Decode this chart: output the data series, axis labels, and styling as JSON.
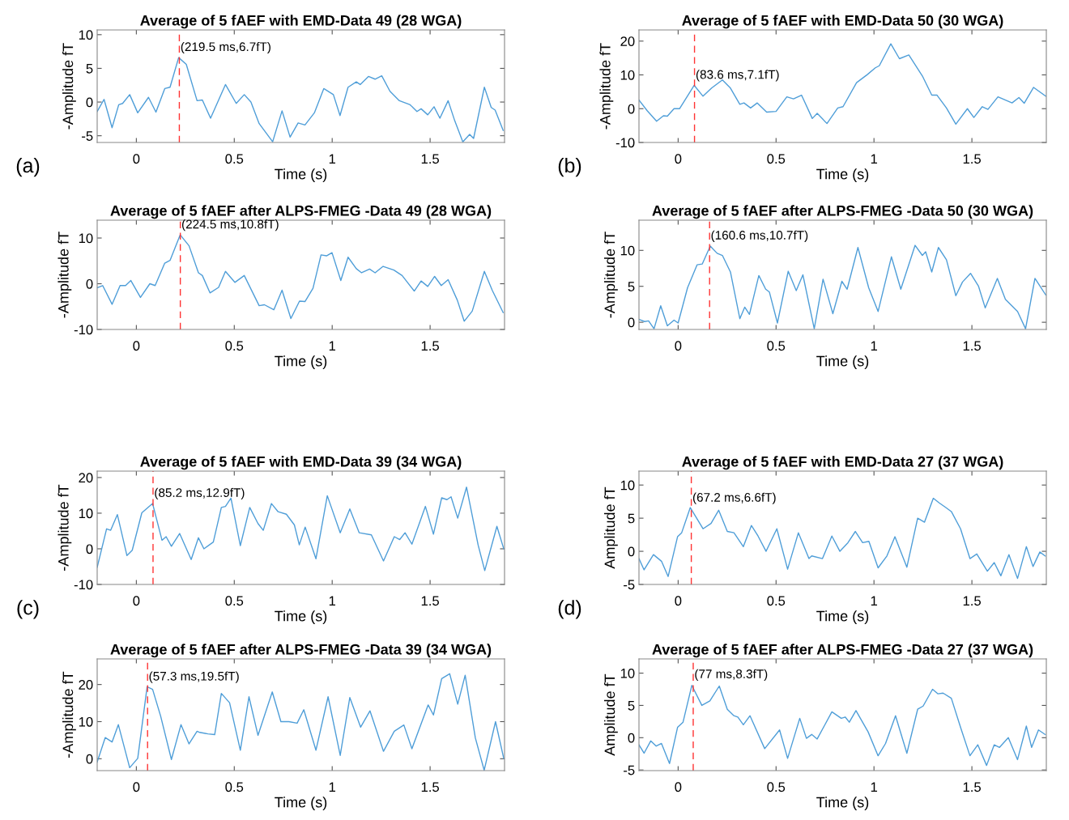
{
  "chart_data": [
    {
      "type": "line",
      "title": "Average of 5 fAEF with EMD-Data 49 (28 WGA)",
      "xlabel": "Time (s)",
      "ylabel": "-Amplitude fT",
      "xlim": [
        -0.2,
        1.88
      ],
      "xticks": [
        0,
        0.5,
        1,
        1.5
      ],
      "ylim": [
        -6,
        10.7
      ],
      "yticks": [
        -5,
        0,
        5,
        10
      ],
      "series": [
        {
          "color": "#4f9ed8",
          "x": [
            -0.2,
            -0.165,
            -0.124,
            -0.09,
            -0.07,
            -0.034,
            0.007,
            0.062,
            0.1,
            0.145,
            0.172,
            0.216,
            0.255,
            0.31,
            0.337,
            0.379,
            0.455,
            0.51,
            0.551,
            0.585,
            0.627,
            0.696,
            0.744,
            0.785,
            0.826,
            0.861,
            0.909,
            0.957,
            1.006,
            1.04,
            1.081,
            1.123,
            1.143,
            1.185,
            1.219,
            1.253,
            1.295,
            1.343,
            1.398,
            1.433,
            1.454,
            1.488,
            1.52,
            1.55,
            1.592,
            1.626,
            1.667,
            1.702,
            1.722,
            1.777,
            1.812,
            1.832,
            1.873
          ],
          "values": [
            -1.4,
            0.4,
            -3.8,
            -0.4,
            -0.2,
            1.1,
            -1.6,
            0.7,
            -1.5,
            2.0,
            2.2,
            6.6,
            5.6,
            0.2,
            0.3,
            -2.4,
            2.6,
            -0.2,
            1.1,
            0,
            -3.2,
            -5.9,
            -1.3,
            -5.2,
            -3.1,
            -3.4,
            -1.6,
            2.0,
            1.1,
            -2.0,
            2.2,
            3.0,
            2.6,
            3.8,
            3.4,
            3.9,
            1.6,
            0.2,
            -0.4,
            -1.4,
            -1.0,
            -1.9,
            -0.7,
            -2.4,
            0.2,
            -2.8,
            -5.9,
            -4.8,
            -5.4,
            2.2,
            -0.8,
            -1.2,
            -4.2
          ]
        }
      ],
      "ref_lines": [
        {
          "axis": "x",
          "value": 0.2195,
          "color": "#ff3333",
          "line_style": "dashed"
        }
      ],
      "annotations": [
        {
          "text": "(219.5 ms,6.7fT)",
          "x": 0.2195,
          "y": 6.7
        },
        "(a)"
      ]
    },
    {
      "type": "line",
      "title": "Average of 5 fAEF with EMD-Data 50 (30 WGA)",
      "xlabel": "Time (s)",
      "ylabel": "-Amplitude fT",
      "xlim": [
        -0.2,
        1.88
      ],
      "xticks": [
        0,
        0.5,
        1,
        1.5
      ],
      "ylim": [
        -10,
        23.3
      ],
      "yticks": [
        -10,
        0,
        10,
        20
      ],
      "series": [
        {
          "color": "#4f9ed8",
          "x": [
            -0.199,
            -0.158,
            -0.11,
            -0.075,
            -0.055,
            -0.021,
            0.007,
            0.082,
            0.127,
            0.171,
            0.226,
            0.267,
            0.315,
            0.336,
            0.37,
            0.404,
            0.452,
            0.5,
            0.555,
            0.589,
            0.63,
            0.685,
            0.71,
            0.76,
            0.815,
            0.842,
            0.911,
            0.966,
            1.007,
            1.027,
            1.086,
            1.13,
            1.178,
            1.247,
            1.295,
            1.322,
            1.37,
            1.418,
            1.477,
            1.51,
            1.553,
            1.582,
            1.633,
            1.705,
            1.74,
            1.767,
            1.815,
            1.877
          ],
          "values": [
            2.5,
            -0.6,
            -3.7,
            -2.1,
            -2.2,
            0,
            0,
            6.9,
            3.7,
            6.1,
            8.5,
            6.1,
            1.3,
            1.7,
            0.2,
            1.7,
            -1.0,
            -0.8,
            3.5,
            2.9,
            4.0,
            -2.9,
            -1.4,
            -4.4,
            0.2,
            0.6,
            7.7,
            10.1,
            12.1,
            12.7,
            19.2,
            14.8,
            15.9,
            9.7,
            4.0,
            4.0,
            0.2,
            -4.6,
            0,
            -2.6,
            0.6,
            -0.2,
            3.5,
            1.7,
            3.3,
            1.6,
            6.3,
            3.7
          ]
        }
      ],
      "ref_lines": [
        {
          "axis": "x",
          "value": 0.0836,
          "color": "#ff3333",
          "line_style": "dashed"
        }
      ],
      "annotations": [
        {
          "text": "(83.6 ms,7.1fT)",
          "x": 0.0836,
          "y": 7.1
        },
        "(b)"
      ]
    },
    {
      "type": "line",
      "title": "Average of 5 fAEF after ALPS-FMEG -Data 49 (28 WGA)",
      "xlabel": "Time (s)",
      "ylabel": "-Amplitude fT",
      "xlim": [
        -0.2,
        1.88
      ],
      "xticks": [
        0,
        0.5,
        1,
        1.5
      ],
      "ylim": [
        -10,
        13.9
      ],
      "yticks": [
        -10,
        0,
        10
      ],
      "series": [
        {
          "color": "#4f9ed8",
          "x": [
            -0.2,
            -0.172,
            -0.124,
            -0.083,
            -0.055,
            -0.028,
            0.021,
            0.069,
            0.096,
            0.145,
            0.172,
            0.224,
            0.269,
            0.317,
            0.337,
            0.376,
            0.42,
            0.455,
            0.503,
            0.551,
            0.627,
            0.654,
            0.702,
            0.744,
            0.789,
            0.833,
            0.861,
            0.902,
            0.943,
            0.971,
            0.999,
            1.044,
            1.081,
            1.123,
            1.15,
            1.191,
            1.219,
            1.26,
            1.315,
            1.357,
            1.419,
            1.454,
            1.488,
            1.523,
            1.557,
            1.592,
            1.639,
            1.674,
            1.715,
            1.777,
            1.818,
            1.873
          ],
          "values": [
            -0.9,
            -0.4,
            -4.5,
            -0.4,
            -0.4,
            0.7,
            -3.0,
            0,
            -0.4,
            4.5,
            5.1,
            10.7,
            8.3,
            2.4,
            1.8,
            -2.0,
            -0.8,
            2.7,
            0.3,
            1.8,
            -4.8,
            -4.6,
            -5.7,
            -1.4,
            -7.6,
            -3.8,
            -3.9,
            -1.0,
            6.3,
            6.1,
            6.8,
            0.7,
            5.8,
            3.3,
            2.4,
            3.2,
            2.4,
            3.8,
            3.0,
            1.8,
            -1.6,
            0.6,
            -0.6,
            1.6,
            -0.4,
            0.9,
            -3.6,
            -8.2,
            -6.0,
            2.7,
            -1.5,
            -6.3
          ]
        }
      ],
      "ref_lines": [
        {
          "axis": "x",
          "value": 0.2245,
          "color": "#ff3333",
          "line_style": "dashed"
        }
      ],
      "annotations": [
        {
          "text": "(224.5 ms,10.8fT)",
          "x": 0.2245,
          "y": 10.8
        }
      ]
    },
    {
      "type": "line",
      "title": "Average of 5 fAEF after ALPS-FMEG -Data 50 (30 WGA)",
      "xlabel": "Time (s)",
      "ylabel": "-Amplitude fT",
      "xlim": [
        -0.2,
        1.88
      ],
      "xticks": [
        0,
        0.5,
        1,
        1.5
      ],
      "ylim": [
        -1,
        14.2
      ],
      "yticks": [
        0,
        5,
        10
      ],
      "series": [
        {
          "color": "#4f9ed8",
          "x": [
            -0.199,
            -0.171,
            -0.151,
            -0.123,
            -0.089,
            -0.055,
            -0.021,
            0,
            0.048,
            0.097,
            0.123,
            0.164,
            0.199,
            0.226,
            0.267,
            0.315,
            0.34,
            0.364,
            0.412,
            0.447,
            0.466,
            0.507,
            0.562,
            0.603,
            0.637,
            0.695,
            0.74,
            0.79,
            0.836,
            0.863,
            0.918,
            0.973,
            1.021,
            1.089,
            1.137,
            1.21,
            1.247,
            1.264,
            1.295,
            1.329,
            1.37,
            1.418,
            1.452,
            1.493,
            1.534,
            1.568,
            1.63,
            1.671,
            1.733,
            1.774,
            1.822,
            1.877
          ],
          "values": [
            0.4,
            0.1,
            0.2,
            -0.9,
            2.3,
            -0.5,
            0.3,
            -0.1,
            4.8,
            8.0,
            8.1,
            10.6,
            9.6,
            9.3,
            7.0,
            0.5,
            2.1,
            1.1,
            6.5,
            4.6,
            4.2,
            -0.1,
            7.1,
            4.4,
            6.6,
            -0.9,
            6.0,
            1.2,
            5.7,
            4.6,
            10.4,
            4.8,
            1.5,
            9.1,
            4.6,
            10.7,
            9.3,
            9.8,
            7.0,
            10.4,
            8.7,
            3.7,
            5.6,
            6.8,
            5.0,
            2.0,
            6.1,
            3.2,
            1.5,
            -0.9,
            6.1,
            3.8
          ]
        }
      ],
      "ref_lines": [
        {
          "axis": "x",
          "value": 0.1606,
          "color": "#ff3333",
          "line_style": "dashed"
        }
      ],
      "annotations": [
        {
          "text": "(160.6 ms,10.7fT)",
          "x": 0.1606,
          "y": 10.7
        }
      ]
    },
    {
      "type": "line",
      "title": "Average of 5 fAEF with EMD-Data 39 (34 WGA)",
      "xlabel": "Time (s)",
      "ylabel": "-Amplitude fT",
      "xlim": [
        -0.2,
        1.88
      ],
      "xticks": [
        0,
        0.5,
        1,
        1.5
      ],
      "ylim": [
        -10,
        21.8
      ],
      "yticks": [
        -10,
        0,
        10,
        20
      ],
      "series": [
        {
          "color": "#4f9ed8",
          "x": [
            -0.2,
            -0.152,
            -0.131,
            -0.097,
            -0.048,
            -0.021,
            0.028,
            0.083,
            0.131,
            0.152,
            0.179,
            0.221,
            0.28,
            0.317,
            0.345,
            0.393,
            0.434,
            0.455,
            0.483,
            0.531,
            0.579,
            0.621,
            0.648,
            0.69,
            0.724,
            0.766,
            0.807,
            0.832,
            0.862,
            0.917,
            0.975,
            1.041,
            1.09,
            1.138,
            1.2,
            1.262,
            1.317,
            1.345,
            1.372,
            1.407,
            1.476,
            1.517,
            1.559,
            1.586,
            1.607,
            1.641,
            1.686,
            1.745,
            1.779,
            1.841,
            1.876
          ],
          "values": [
            -5.2,
            5.6,
            5.2,
            9.6,
            -1.9,
            -0.4,
            10.1,
            12.7,
            2.4,
            3.4,
            0.7,
            4.3,
            -3.0,
            3.1,
            0,
            1.9,
            11.6,
            11.9,
            14.2,
            0.9,
            11.6,
            7.1,
            5.2,
            12.7,
            10.4,
            9.7,
            6.7,
            1.1,
            6.1,
            -2.8,
            14.9,
            4.5,
            11.2,
            4.5,
            3.9,
            -3.4,
            3.4,
            2.6,
            4.5,
            1.3,
            11.9,
            4.1,
            14.3,
            13.8,
            14.6,
            8.6,
            17.3,
            1.1,
            -6.1,
            6.3,
            0
          ]
        }
      ],
      "ref_lines": [
        {
          "axis": "x",
          "value": 0.0852,
          "color": "#ff3333",
          "line_style": "dashed"
        }
      ],
      "annotations": [
        {
          "text": "(85.2 ms,12.9fT)",
          "x": 0.0852,
          "y": 12.9
        },
        "(c)"
      ]
    },
    {
      "type": "line",
      "title": "Average of 5 fAEF with EMD-Data 27 (37 WGA)",
      "xlabel": "Time (s)",
      "ylabel": "Amplitude fT",
      "xlim": [
        -0.2,
        1.88
      ],
      "xticks": [
        0,
        0.5,
        1,
        1.5
      ],
      "ylim": [
        -5,
        12.1
      ],
      "yticks": [
        -5,
        0,
        5,
        10
      ],
      "series": [
        {
          "color": "#4f9ed8",
          "x": [
            -0.2,
            -0.174,
            -0.126,
            -0.085,
            -0.051,
            -0.003,
            0.018,
            0.062,
            0.127,
            0.168,
            0.207,
            0.251,
            0.285,
            0.333,
            0.374,
            0.408,
            0.449,
            0.504,
            0.559,
            0.614,
            0.668,
            0.682,
            0.737,
            0.785,
            0.826,
            0.867,
            0.905,
            0.942,
            0.974,
            1.021,
            1.066,
            1.107,
            1.168,
            1.223,
            1.258,
            1.303,
            1.333,
            1.367,
            1.395,
            1.442,
            1.49,
            1.525,
            1.579,
            1.614,
            1.648,
            1.689,
            1.733,
            1.778,
            1.812,
            1.847,
            1.874
          ],
          "values": [
            -1.1,
            -2.8,
            -0.5,
            -1.5,
            -3.8,
            2.2,
            2.8,
            6.6,
            3.4,
            4.2,
            6.2,
            3.0,
            2.8,
            0.7,
            3.9,
            2.3,
            0,
            3.4,
            -2.7,
            2.8,
            -1.1,
            -0.7,
            -1.1,
            2.3,
            0,
            1.3,
            3.0,
            1.3,
            1.5,
            -2.5,
            -0.7,
            2.2,
            -2.4,
            5.0,
            4.4,
            8.0,
            7.3,
            6.6,
            6.0,
            3.4,
            -1.1,
            -0.4,
            -3.0,
            -1.7,
            -3.7,
            -0.5,
            -4.1,
            0.7,
            -2.3,
            -0.1,
            -0.7
          ]
        }
      ],
      "ref_lines": [
        {
          "axis": "x",
          "value": 0.0672,
          "color": "#ff3333",
          "line_style": "dashed"
        }
      ],
      "annotations": [
        {
          "text": "(67.2 ms,6.6fT)",
          "x": 0.0672,
          "y": 6.6
        },
        "(d)"
      ]
    },
    {
      "type": "line",
      "title": "Average of 5 fAEF after ALPS-FMEG -Data 39 (34 WGA)",
      "xlabel": "Time (s)",
      "ylabel": "-Amplitude fT",
      "xlim": [
        -0.2,
        1.88
      ],
      "xticks": [
        0,
        0.5,
        1,
        1.5
      ],
      "ylim": [
        -3.2,
        26.9
      ],
      "yticks": [
        0,
        10,
        20
      ],
      "series": [
        {
          "color": "#4f9ed8",
          "x": [
            -0.2,
            -0.159,
            -0.124,
            -0.092,
            -0.034,
            0.007,
            0.055,
            0.083,
            0.124,
            0.179,
            0.228,
            0.269,
            0.31,
            0.324,
            0.366,
            0.4,
            0.434,
            0.476,
            0.531,
            0.575,
            0.621,
            0.694,
            0.738,
            0.779,
            0.821,
            0.855,
            0.917,
            0.979,
            1.041,
            1.09,
            1.145,
            1.193,
            1.262,
            1.317,
            1.366,
            1.407,
            1.49,
            1.517,
            1.559,
            1.6,
            1.641,
            1.679,
            1.731,
            1.776,
            1.834,
            1.876
          ],
          "values": [
            -0.9,
            5.7,
            4.5,
            9.2,
            -2.4,
            0.1,
            19.4,
            18.7,
            11.5,
            -0.2,
            9.2,
            4.0,
            7.4,
            7.1,
            6.7,
            6.5,
            17.6,
            15.1,
            2.3,
            16.7,
            6.3,
            18.0,
            10.0,
            10.0,
            9.6,
            13.2,
            2.3,
            16.7,
            0.9,
            16.5,
            8.5,
            12.9,
            2.0,
            7.4,
            9.1,
            2.7,
            14.5,
            11.8,
            21.6,
            22.9,
            14.7,
            22.5,
            5.6,
            -3.1,
            10.0,
            0.1
          ]
        }
      ],
      "ref_lines": [
        {
          "axis": "x",
          "value": 0.0573,
          "color": "#ff3333",
          "line_style": "dashed"
        }
      ],
      "annotations": [
        {
          "text": "(57.3 ms,19.5fT)",
          "x": 0.0573,
          "y": 19.5
        }
      ]
    },
    {
      "type": "line",
      "title": "Average of 5 fAEF after ALPS-FMEG -Data 27 (37 WGA)",
      "xlabel": "Time (s)",
      "ylabel": "Amplitude fT",
      "xlim": [
        -0.2,
        1.88
      ],
      "xticks": [
        0,
        0.5,
        1,
        1.5
      ],
      "ylim": [
        -5.1,
        12.2
      ],
      "yticks": [
        -5,
        0,
        5,
        10
      ],
      "series": [
        {
          "color": "#4f9ed8",
          "x": [
            -0.2,
            -0.174,
            -0.14,
            -0.112,
            -0.085,
            -0.044,
            -0.003,
            0.025,
            0.07,
            0.121,
            0.162,
            0.21,
            0.251,
            0.285,
            0.305,
            0.333,
            0.367,
            0.442,
            0.518,
            0.559,
            0.621,
            0.655,
            0.682,
            0.71,
            0.785,
            0.833,
            0.853,
            0.874,
            0.908,
            0.97,
            1.021,
            1.059,
            1.11,
            1.168,
            1.223,
            1.251,
            1.299,
            1.326,
            1.353,
            1.395,
            1.442,
            1.49,
            1.53,
            1.575,
            1.614,
            1.641,
            1.686,
            1.733,
            1.778,
            1.805,
            1.84,
            1.874
          ],
          "values": [
            -1.1,
            -2.4,
            -0.5,
            -1.3,
            -0.9,
            -4.0,
            1.6,
            2.4,
            8.1,
            5.0,
            5.7,
            8.0,
            4.4,
            3.4,
            3.2,
            2.0,
            3.4,
            -1.7,
            1.2,
            -3.2,
            3.0,
            -0.1,
            0.5,
            -0.2,
            4.0,
            3.0,
            3.2,
            2.4,
            4.2,
            0.9,
            -2.8,
            -0.9,
            3.4,
            -2.4,
            4.4,
            4.9,
            7.5,
            6.8,
            6.9,
            6.1,
            1.6,
            -2.8,
            -1.1,
            -4.3,
            -1.1,
            -1.5,
            0,
            -3.4,
            1.8,
            -1.5,
            1.2,
            0.5
          ]
        }
      ],
      "ref_lines": [
        {
          "axis": "x",
          "value": 0.077,
          "color": "#ff3333",
          "line_style": "dashed"
        }
      ],
      "annotations": [
        {
          "text": "(77 ms,8.3fT)",
          "x": 0.077,
          "y": 8.3
        }
      ]
    }
  ]
}
